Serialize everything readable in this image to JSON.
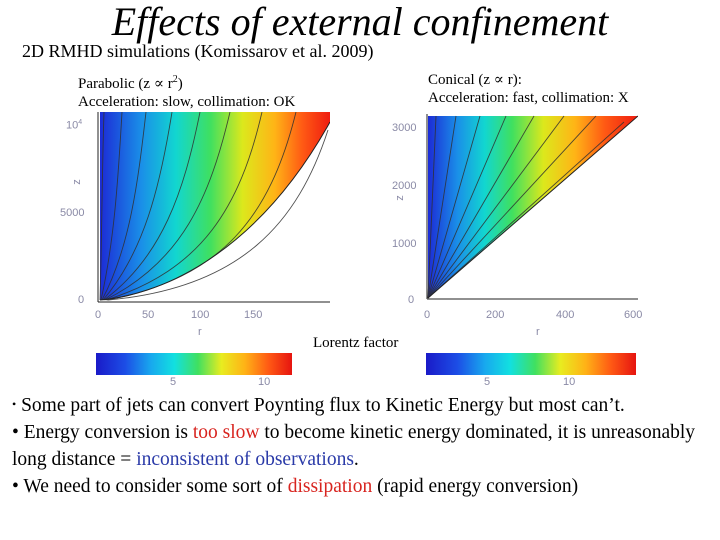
{
  "slide": {
    "title": "Effects of external confinement",
    "subtitle": "2D RMHD simulations (Komissarov et al. 2009)",
    "left_caption": {
      "line1_pre": "Parabolic (z ",
      "prop_symbol": "∝",
      "line1_mid": " r",
      "exponent": "2",
      "line1_post": ")",
      "line2": "Acceleration: slow, collimation: OK"
    },
    "right_caption": {
      "line1": "Conical (z ∝ r):",
      "line2": "Acceleration: fast, collimation: X"
    },
    "colorbar_label": "Lorentz factor"
  },
  "left_plot": {
    "y_ticks": [
      {
        "label": "0"
      },
      {
        "label": "5000"
      },
      {
        "label": "10"
      }
    ],
    "y_tick_exponent": "4",
    "y_axis_label": "z",
    "x_ticks": [
      {
        "label": "0"
      },
      {
        "label": "50"
      },
      {
        "label": "100"
      },
      {
        "label": "150"
      }
    ],
    "x_axis_label": "r",
    "colorbar_ticks": [
      {
        "label": "5"
      },
      {
        "label": "10"
      }
    ]
  },
  "right_plot": {
    "y_ticks": [
      {
        "label": "0"
      },
      {
        "label": "1000"
      },
      {
        "label": "2000"
      },
      {
        "label": "3000"
      }
    ],
    "y_axis_label": "z",
    "x_ticks": [
      {
        "label": "0"
      },
      {
        "label": "200"
      },
      {
        "label": "400"
      },
      {
        "label": "600"
      }
    ],
    "x_axis_label": "r",
    "colorbar_ticks": [
      {
        "label": "5"
      },
      {
        "label": "10"
      }
    ]
  },
  "bullets": {
    "b1": "Some part of jets can convert Poynting flux to Kinetic Energy but most can’t.",
    "b2_pre": "Energy conversion is ",
    "b2_red": "too slow",
    "b2_mid": " to become kinetic energy dominated, it is unreasonably long distance = ",
    "b2_blue": "inconsistent of observations",
    "b2_post": ".",
    "b3_pre": "We need to consider some sort of ",
    "b3_red": "dissipation",
    "b3_post": " (rapid energy conversion)"
  },
  "colors": {
    "jet_low": "#1f2fd0",
    "jet_high": "#f02010",
    "text_red": "#d8241f",
    "text_blue": "#2a3aa8"
  }
}
